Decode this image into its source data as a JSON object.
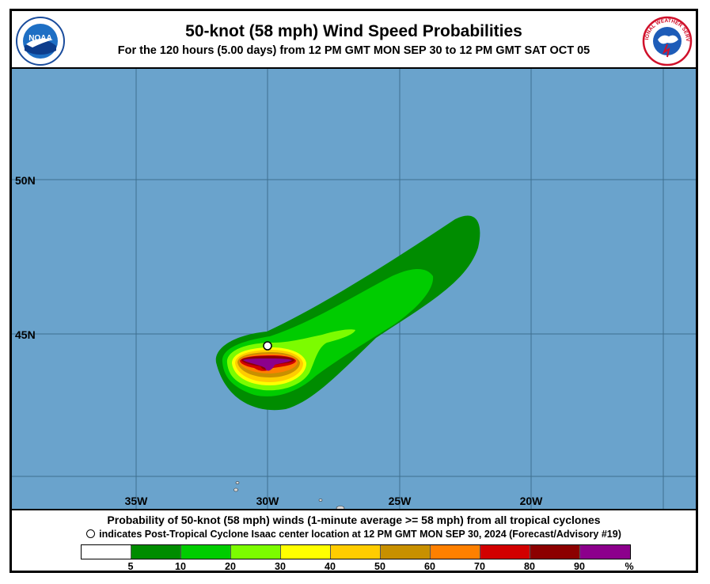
{
  "header": {
    "title": "50-knot (58 mph) Wind Speed Probabilities",
    "subtitle": "For the 120 hours (5.00 days) from 12 PM GMT MON SEP 30 to 12 PM GMT SAT OCT 05",
    "left_logo": "noaa-logo",
    "left_logo_text": "NOAA",
    "right_logo": "national-weather-service-logo",
    "right_logo_text": "NATIONAL WEATHER SERVICE"
  },
  "map": {
    "ocean_color": "#6aa3cc",
    "lat_labels": [
      {
        "label": "50N",
        "lat": 50
      },
      {
        "label": "45N",
        "lat": 45
      }
    ],
    "lon_labels": [
      {
        "label": "35W",
        "lon": -35
      },
      {
        "label": "30W",
        "lon": -30
      },
      {
        "label": "25W",
        "lon": -25
      },
      {
        "label": "20W",
        "lon": -20
      }
    ],
    "storm_marker": {
      "symbol": "open-circle",
      "lat": 44.6,
      "lon": -30.0
    }
  },
  "footer": {
    "caption1": "Probability of 50-knot (58 mph) winds (1-minute average >= 58 mph) from all tropical cyclones",
    "caption2_symbol": "O",
    "caption2": "indicates Post-Tropical Cyclone Isaac center location at 12 PM GMT MON SEP 30, 2024 (Forecast/Advisory #19)"
  },
  "legend": {
    "colors": [
      "#ffffff",
      "#008c00",
      "#00cc00",
      "#7cfc00",
      "#ffff00",
      "#ffcc00",
      "#c89000",
      "#ff8000",
      "#d20000",
      "#8c0000",
      "#8c008c"
    ],
    "labels": [
      "5",
      "10",
      "20",
      "30",
      "40",
      "50",
      "60",
      "70",
      "80",
      "90",
      "%"
    ]
  }
}
